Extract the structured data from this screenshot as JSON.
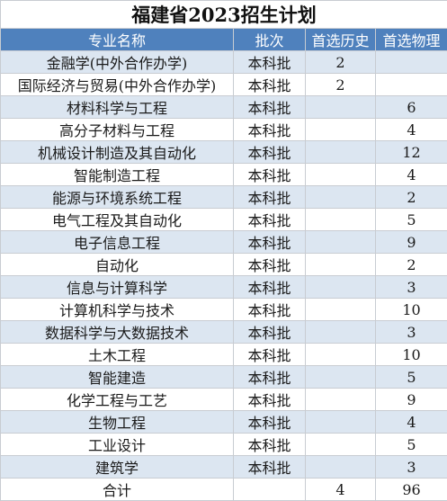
{
  "title": "福建省2023招生计划",
  "headers": [
    "专业名称",
    "批次",
    "首选历史",
    "首选物理"
  ],
  "rows": [
    {
      "major": "金融学(中外合作办学)",
      "batch": "本科批",
      "history": "2",
      "physics": ""
    },
    {
      "major": "国际经济与贸易(中外合作办学)",
      "batch": "本科批",
      "history": "2",
      "physics": ""
    },
    {
      "major": "材料科学与工程",
      "batch": "本科批",
      "history": "",
      "physics": "6"
    },
    {
      "major": "高分子材料与工程",
      "batch": "本科批",
      "history": "",
      "physics": "4"
    },
    {
      "major": "机械设计制造及其自动化",
      "batch": "本科批",
      "history": "",
      "physics": "12"
    },
    {
      "major": "智能制造工程",
      "batch": "本科批",
      "history": "",
      "physics": "4"
    },
    {
      "major": "能源与环境系统工程",
      "batch": "本科批",
      "history": "",
      "physics": "2"
    },
    {
      "major": "电气工程及其自动化",
      "batch": "本科批",
      "history": "",
      "physics": "5"
    },
    {
      "major": "电子信息工程",
      "batch": "本科批",
      "history": "",
      "physics": "9"
    },
    {
      "major": "自动化",
      "batch": "本科批",
      "history": "",
      "physics": "2"
    },
    {
      "major": "信息与计算科学",
      "batch": "本科批",
      "history": "",
      "physics": "3"
    },
    {
      "major": "计算机科学与技术",
      "batch": "本科批",
      "history": "",
      "physics": "10"
    },
    {
      "major": "数据科学与大数据技术",
      "batch": "本科批",
      "history": "",
      "physics": "3"
    },
    {
      "major": "土木工程",
      "batch": "本科批",
      "history": "",
      "physics": "10"
    },
    {
      "major": "智能建造",
      "batch": "本科批",
      "history": "",
      "physics": "5"
    },
    {
      "major": "化学工程与工艺",
      "batch": "本科批",
      "history": "",
      "physics": "9"
    },
    {
      "major": "生物工程",
      "batch": "本科批",
      "history": "",
      "physics": "4"
    },
    {
      "major": "工业设计",
      "batch": "本科批",
      "history": "",
      "physics": "5"
    },
    {
      "major": "建筑学",
      "batch": "本科批",
      "history": "",
      "physics": "3"
    }
  ],
  "total": {
    "label": "合计",
    "batch": "",
    "history": "4",
    "physics": "96"
  }
}
